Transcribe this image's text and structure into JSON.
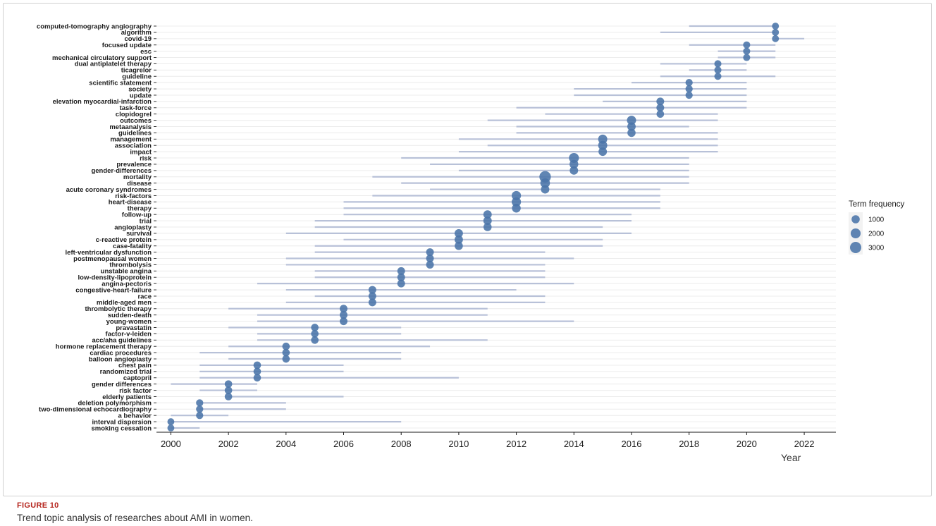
{
  "figure": {
    "label": "FIGURE 10",
    "caption": "Trend topic analysis of researches about AMI in women."
  },
  "chart_data": {
    "type": "scatter",
    "xlabel": "Year",
    "ylabel": "",
    "xlim": [
      1999.5,
      2023.1
    ],
    "xticks": [
      2000,
      2002,
      2004,
      2006,
      2008,
      2010,
      2012,
      2014,
      2016,
      2018,
      2020,
      2022
    ],
    "grid": true,
    "legend": {
      "title": "Term frequency",
      "placement": "right",
      "entries": [
        1000,
        2000,
        3000
      ]
    },
    "colors": {
      "point": "#4a74a8",
      "range": "#b8c1d8",
      "grid": "#ececec"
    },
    "terms": [
      {
        "term": "computed-tomography angiography",
        "start": 2018,
        "end": 2021,
        "median": 2021,
        "freq": 500
      },
      {
        "term": "algorithm",
        "start": 2017,
        "end": 2021,
        "median": 2021,
        "freq": 500
      },
      {
        "term": "covid-19",
        "start": 2021,
        "end": 2022,
        "median": 2021,
        "freq": 500
      },
      {
        "term": "focused update",
        "start": 2018,
        "end": 2021,
        "median": 2020,
        "freq": 550
      },
      {
        "term": "esc",
        "start": 2019,
        "end": 2021,
        "median": 2020,
        "freq": 550
      },
      {
        "term": "mechanical circulatory support",
        "start": 2019,
        "end": 2021,
        "median": 2020,
        "freq": 550
      },
      {
        "term": "dual antiplatelet therapy",
        "start": 2017,
        "end": 2020,
        "median": 2019,
        "freq": 550
      },
      {
        "term": "ticagrelor",
        "start": 2018,
        "end": 2020,
        "median": 2019,
        "freq": 550
      },
      {
        "term": "guideline",
        "start": 2017,
        "end": 2021,
        "median": 2019,
        "freq": 550
      },
      {
        "term": "scientific statement",
        "start": 2016,
        "end": 2020,
        "median": 2018,
        "freq": 600
      },
      {
        "term": "society",
        "start": 2014,
        "end": 2020,
        "median": 2018,
        "freq": 600
      },
      {
        "term": "update",
        "start": 2014,
        "end": 2020,
        "median": 2018,
        "freq": 600
      },
      {
        "term": "elevation myocardial-infarction",
        "start": 2015,
        "end": 2020,
        "median": 2017,
        "freq": 800
      },
      {
        "term": "task-force",
        "start": 2012,
        "end": 2020,
        "median": 2017,
        "freq": 800
      },
      {
        "term": "clopidogrel",
        "start": 2013,
        "end": 2019,
        "median": 2017,
        "freq": 700
      },
      {
        "term": "outcomes",
        "start": 2011,
        "end": 2019,
        "median": 2016,
        "freq": 1500
      },
      {
        "term": "metaanalysis",
        "start": 2012,
        "end": 2018,
        "median": 2016,
        "freq": 1100
      },
      {
        "term": "guidelines",
        "start": 2012,
        "end": 2019,
        "median": 2016,
        "freq": 1000
      },
      {
        "term": "management",
        "start": 2010,
        "end": 2019,
        "median": 2015,
        "freq": 1500
      },
      {
        "term": "association",
        "start": 2011,
        "end": 2019,
        "median": 2015,
        "freq": 1500
      },
      {
        "term": "impact",
        "start": 2010,
        "end": 2019,
        "median": 2015,
        "freq": 1100
      },
      {
        "term": "risk",
        "start": 2008,
        "end": 2018,
        "median": 2014,
        "freq": 2000
      },
      {
        "term": "prevalence",
        "start": 2009,
        "end": 2018,
        "median": 2014,
        "freq": 1300
      },
      {
        "term": "gender-differences",
        "start": 2010,
        "end": 2018,
        "median": 2014,
        "freq": 1100
      },
      {
        "term": "mortality",
        "start": 2007,
        "end": 2018,
        "median": 2013,
        "freq": 3200
      },
      {
        "term": "disease",
        "start": 2008,
        "end": 2018,
        "median": 2013,
        "freq": 1800
      },
      {
        "term": "acute coronary syndromes",
        "start": 2009,
        "end": 2017,
        "median": 2013,
        "freq": 1100
      },
      {
        "term": "risk-factors",
        "start": 2007,
        "end": 2017,
        "median": 2012,
        "freq": 1600
      },
      {
        "term": "heart-disease",
        "start": 2006,
        "end": 2017,
        "median": 2012,
        "freq": 1600
      },
      {
        "term": "therapy",
        "start": 2006,
        "end": 2017,
        "median": 2012,
        "freq": 1300
      },
      {
        "term": "follow-up",
        "start": 2006,
        "end": 2016,
        "median": 2011,
        "freq": 1100
      },
      {
        "term": "trial",
        "start": 2005,
        "end": 2016,
        "median": 2011,
        "freq": 1100
      },
      {
        "term": "angioplasty",
        "start": 2005,
        "end": 2015,
        "median": 2011,
        "freq": 1000
      },
      {
        "term": "survival",
        "start": 2004,
        "end": 2016,
        "median": 2010,
        "freq": 1100
      },
      {
        "term": "c-reactive protein",
        "start": 2006,
        "end": 2015,
        "median": 2010,
        "freq": 1100
      },
      {
        "term": "case-fatality",
        "start": 2005,
        "end": 2015,
        "median": 2010,
        "freq": 1000
      },
      {
        "term": "left-ventricular dysfunction",
        "start": 2005,
        "end": 2013,
        "median": 2009,
        "freq": 800
      },
      {
        "term": "postmenopausal women",
        "start": 2004,
        "end": 2014,
        "median": 2009,
        "freq": 800
      },
      {
        "term": "thrombolysis",
        "start": 2004,
        "end": 2013,
        "median": 2009,
        "freq": 800
      },
      {
        "term": "unstable angina",
        "start": 2005,
        "end": 2013,
        "median": 2008,
        "freq": 800
      },
      {
        "term": "low-density-lipoprotein",
        "start": 2005,
        "end": 2013,
        "median": 2008,
        "freq": 800
      },
      {
        "term": "angina-pectoris",
        "start": 2003,
        "end": 2014,
        "median": 2008,
        "freq": 800
      },
      {
        "term": "congestive-heart-failure",
        "start": 2004,
        "end": 2012,
        "median": 2007,
        "freq": 800
      },
      {
        "term": "race",
        "start": 2005,
        "end": 2013,
        "median": 2007,
        "freq": 800
      },
      {
        "term": "middle-aged men",
        "start": 2004,
        "end": 2013,
        "median": 2007,
        "freq": 800
      },
      {
        "term": "thrombolytic therapy",
        "start": 2002,
        "end": 2011,
        "median": 2006,
        "freq": 800
      },
      {
        "term": "sudden-death",
        "start": 2003,
        "end": 2011,
        "median": 2006,
        "freq": 800
      },
      {
        "term": "young-women",
        "start": 2003,
        "end": 2014,
        "median": 2006,
        "freq": 800
      },
      {
        "term": "pravastatin",
        "start": 2002,
        "end": 2008,
        "median": 2005,
        "freq": 700
      },
      {
        "term": "factor-v-leiden",
        "start": 2003,
        "end": 2008,
        "median": 2005,
        "freq": 700
      },
      {
        "term": "acc/aha guidelines",
        "start": 2003,
        "end": 2011,
        "median": 2005,
        "freq": 700
      },
      {
        "term": "hormone replacement therapy",
        "start": 2002,
        "end": 2009,
        "median": 2004,
        "freq": 700
      },
      {
        "term": "cardiac procedures",
        "start": 2001,
        "end": 2008,
        "median": 2004,
        "freq": 700
      },
      {
        "term": "balloon angioplasty",
        "start": 2002,
        "end": 2008,
        "median": 2004,
        "freq": 700
      },
      {
        "term": "chest pain",
        "start": 2001,
        "end": 2006,
        "median": 2003,
        "freq": 700
      },
      {
        "term": "randomized trial",
        "start": 2001,
        "end": 2006,
        "median": 2003,
        "freq": 700
      },
      {
        "term": "captopril",
        "start": 2001,
        "end": 2010,
        "median": 2003,
        "freq": 700
      },
      {
        "term": "gender differences",
        "start": 2000,
        "end": 2003,
        "median": 2002,
        "freq": 700
      },
      {
        "term": "risk factor",
        "start": 2001,
        "end": 2003,
        "median": 2002,
        "freq": 700
      },
      {
        "term": "elderly patients",
        "start": 2002,
        "end": 2006,
        "median": 2002,
        "freq": 700
      },
      {
        "term": "deletion polymorphism",
        "start": 2001,
        "end": 2004,
        "median": 2001,
        "freq": 600
      },
      {
        "term": "two-dimensional echocardiography",
        "start": 2001,
        "end": 2004,
        "median": 2001,
        "freq": 600
      },
      {
        "term": "a behavior",
        "start": 2000,
        "end": 2002,
        "median": 2001,
        "freq": 600
      },
      {
        "term": "interval dispersion",
        "start": 2000,
        "end": 2008,
        "median": 2000,
        "freq": 500
      },
      {
        "term": "smoking cessation",
        "start": 2000,
        "end": 2001,
        "median": 2000,
        "freq": 500
      }
    ]
  }
}
